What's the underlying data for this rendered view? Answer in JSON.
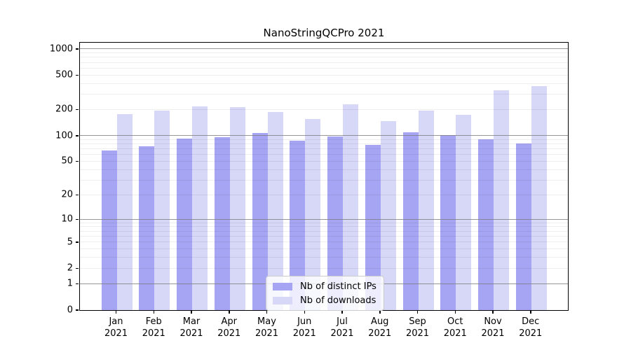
{
  "chart_data": {
    "type": "bar",
    "title": "NanoStringQCPro 2021",
    "x_months": [
      "Jan",
      "Feb",
      "Mar",
      "Apr",
      "May",
      "Jun",
      "Jul",
      "Aug",
      "Sep",
      "Oct",
      "Nov",
      "Dec"
    ],
    "x_year": "2021",
    "series": [
      {
        "name": "Nb of distinct IPs",
        "color": "#a5a5f3",
        "values": [
          67,
          76,
          93,
          97,
          108,
          87,
          99,
          79,
          110,
          102,
          91,
          81
        ]
      },
      {
        "name": "Nb of downloads",
        "color": "#d7d7f7",
        "values": [
          180,
          196,
          218,
          215,
          190,
          157,
          230,
          147,
          195,
          176,
          335,
          377
        ]
      }
    ],
    "y_axis": {
      "scale": "log10(value+1)",
      "tick_labels": [
        1000,
        500,
        200,
        100,
        50,
        20,
        10,
        5,
        2,
        1,
        0
      ],
      "max": 1200,
      "major_gridlines": [
        1,
        10,
        100,
        1000
      ],
      "minor_gridline_steps": [
        2,
        3,
        4,
        5,
        6,
        7,
        8,
        9
      ]
    },
    "grid": "horizontal",
    "legend_position": "lower center"
  },
  "colors": {
    "background": "#ffffff",
    "spine": "#000000",
    "major_gridline": "#7d7d7d",
    "minor_gridline": "#ebebeb",
    "legend_border": "#cccccc"
  }
}
